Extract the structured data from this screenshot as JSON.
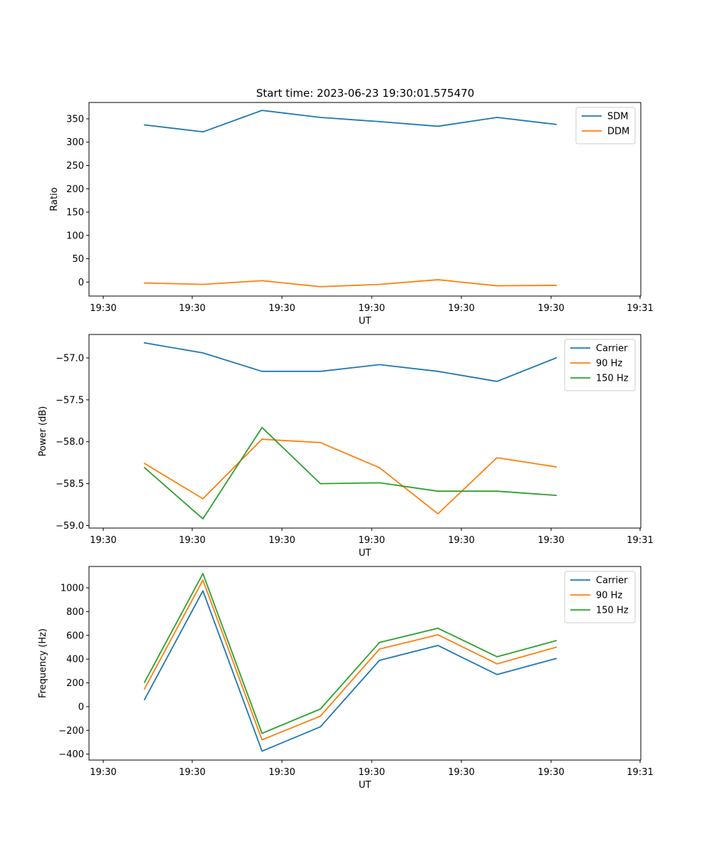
{
  "title": "Start time: 2023-06-23 19:30:01.575470",
  "colors": {
    "c1": "#1f77b4",
    "c2": "#ff7f0e",
    "c3": "#2ca02c",
    "axes": "#000000"
  },
  "chart_data": [
    {
      "type": "line",
      "xlabel": "UT",
      "ylabel": "Ratio",
      "xticks": [
        "19:30",
        "19:30",
        "19:30",
        "19:30",
        "19:30",
        "19:30",
        "19:31"
      ],
      "ylim": [
        -30,
        385
      ],
      "yticks": [
        "0",
        "50",
        "100",
        "150",
        "200",
        "250",
        "300",
        "350"
      ],
      "ytick_values": [
        0,
        50,
        100,
        150,
        200,
        250,
        300,
        350
      ],
      "legend": "top-right",
      "series": [
        {
          "name": "SDM",
          "color": "#1f77b4",
          "values": [
            337,
            322,
            368,
            353,
            344,
            334,
            353,
            338
          ]
        },
        {
          "name": "DDM",
          "color": "#ff7f0e",
          "values": [
            -2,
            -5,
            3,
            -10,
            -5,
            5,
            -8,
            -7
          ]
        }
      ]
    },
    {
      "type": "line",
      "xlabel": "UT",
      "ylabel": "Power (dB)",
      "xticks": [
        "19:30",
        "19:30",
        "19:30",
        "19:30",
        "19:30",
        "19:30",
        "19:31"
      ],
      "ylim": [
        -59.03,
        -56.72
      ],
      "yticks": [
        "−59.0",
        "−58.5",
        "−58.0",
        "−57.5",
        "−57.0"
      ],
      "ytick_values": [
        -59.0,
        -58.5,
        -58.0,
        -57.5,
        -57.0
      ],
      "legend": "top-right",
      "series": [
        {
          "name": "Carrier",
          "color": "#1f77b4",
          "values": [
            -56.82,
            -56.94,
            -57.16,
            -57.16,
            -57.08,
            -57.16,
            -57.28,
            -57.0
          ]
        },
        {
          "name": "90 Hz",
          "color": "#ff7f0e",
          "values": [
            -58.26,
            -58.68,
            -57.97,
            -58.01,
            -58.31,
            -58.86,
            -58.19,
            -58.3
          ]
        },
        {
          "name": "150 Hz",
          "color": "#2ca02c",
          "values": [
            -58.31,
            -58.92,
            -57.83,
            -58.5,
            -58.49,
            -58.59,
            -58.59,
            -58.64
          ]
        }
      ]
    },
    {
      "type": "line",
      "xlabel": "UT",
      "ylabel": "Frequency (Hz)",
      "xticks": [
        "19:30",
        "19:30",
        "19:30",
        "19:30",
        "19:30",
        "19:30",
        "19:31"
      ],
      "ylim": [
        -450,
        1180
      ],
      "yticks": [
        "−400",
        "−200",
        "0",
        "200",
        "400",
        "600",
        "800",
        "1000"
      ],
      "ytick_values": [
        -400,
        -200,
        0,
        200,
        400,
        600,
        800,
        1000
      ],
      "legend": "top-right",
      "series": [
        {
          "name": "Carrier",
          "color": "#1f77b4",
          "values": [
            60,
            975,
            -375,
            -170,
            390,
            515,
            270,
            405
          ]
        },
        {
          "name": "90 Hz",
          "color": "#ff7f0e",
          "values": [
            150,
            1065,
            -280,
            -80,
            485,
            605,
            360,
            500
          ]
        },
        {
          "name": "150 Hz",
          "color": "#2ca02c",
          "values": [
            205,
            1120,
            -225,
            -20,
            540,
            660,
            420,
            555
          ]
        }
      ]
    }
  ]
}
